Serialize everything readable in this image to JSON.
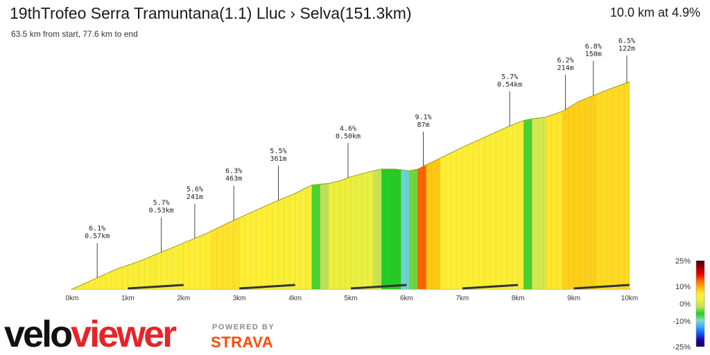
{
  "header": {
    "title": "19thTrofeo Serra Tramuntana(1.1) Lluc › Selva(151.3km)",
    "subtitle": "63.5 km from start, 77.6 km to end",
    "summary": "10.0 km at 4.9%"
  },
  "branding": {
    "logo_part1": "velo",
    "logo_part2": "viewer",
    "powered_by": "POWERED BY",
    "partner": "STRAVA",
    "logo_color_dark": "#111111",
    "logo_color_red": "#e6242a",
    "partner_color": "#fc4c02"
  },
  "chart_data": {
    "type": "area",
    "title": "",
    "xlabel": "",
    "ylabel": "",
    "xlim": [
      0,
      10
    ],
    "x_ticks": [
      "0km",
      "1km",
      "2km",
      "3km",
      "4km",
      "5km",
      "6km",
      "7km",
      "8km",
      "9km",
      "10km"
    ],
    "profile": {
      "x_km": [
        0,
        0.4,
        0.8,
        1.2,
        1.6,
        2.0,
        2.4,
        2.8,
        3.2,
        3.6,
        4.0,
        4.3,
        4.45,
        4.6,
        4.8,
        5.0,
        5.4,
        5.55,
        5.8,
        6.05,
        6.2,
        6.35,
        6.6,
        7.0,
        7.4,
        7.8,
        8.1,
        8.25,
        8.5,
        8.8,
        9.1,
        9.4,
        9.7,
        10.0
      ],
      "elevation_relative": [
        0,
        0.12,
        0.24,
        0.33,
        0.44,
        0.55,
        0.66,
        0.79,
        0.91,
        1.03,
        1.14,
        1.24,
        1.25,
        1.26,
        1.29,
        1.34,
        1.41,
        1.43,
        1.43,
        1.41,
        1.43,
        1.48,
        1.56,
        1.69,
        1.81,
        1.93,
        2.01,
        2.03,
        2.05,
        2.12,
        2.24,
        2.32,
        2.4,
        2.47
      ]
    },
    "segments": [
      {
        "from_km": 0.0,
        "to_km": 1.0,
        "gradient_pct": 5.8
      },
      {
        "from_km": 1.0,
        "to_km": 1.6,
        "gradient_pct": 5.6
      },
      {
        "from_km": 1.6,
        "to_km": 2.0,
        "gradient_pct": 5.7
      },
      {
        "from_km": 2.0,
        "to_km": 2.5,
        "gradient_pct": 6.0
      },
      {
        "from_km": 2.5,
        "to_km": 3.0,
        "gradient_pct": 6.3
      },
      {
        "from_km": 3.0,
        "to_km": 3.6,
        "gradient_pct": 6.0
      },
      {
        "from_km": 3.6,
        "to_km": 4.3,
        "gradient_pct": 5.5
      },
      {
        "from_km": 4.3,
        "to_km": 4.45,
        "gradient_pct": 0.5
      },
      {
        "from_km": 4.45,
        "to_km": 4.6,
        "gradient_pct": 2.0
      },
      {
        "from_km": 4.6,
        "to_km": 5.0,
        "gradient_pct": 4.6
      },
      {
        "from_km": 5.0,
        "to_km": 5.4,
        "gradient_pct": 4.2
      },
      {
        "from_km": 5.4,
        "to_km": 5.55,
        "gradient_pct": 2.5
      },
      {
        "from_km": 5.55,
        "to_km": 5.9,
        "gradient_pct": 0.0
      },
      {
        "from_km": 5.9,
        "to_km": 6.05,
        "gradient_pct": -1.5
      },
      {
        "from_km": 6.05,
        "to_km": 6.2,
        "gradient_pct": 1.0
      },
      {
        "from_km": 6.2,
        "to_km": 6.35,
        "gradient_pct": 9.1
      },
      {
        "from_km": 6.35,
        "to_km": 6.6,
        "gradient_pct": 7.0
      },
      {
        "from_km": 6.6,
        "to_km": 7.4,
        "gradient_pct": 5.8
      },
      {
        "from_km": 7.4,
        "to_km": 8.1,
        "gradient_pct": 5.7
      },
      {
        "from_km": 8.1,
        "to_km": 8.25,
        "gradient_pct": 0.5
      },
      {
        "from_km": 8.25,
        "to_km": 8.5,
        "gradient_pct": 3.0
      },
      {
        "from_km": 8.5,
        "to_km": 8.8,
        "gradient_pct": 6.2
      },
      {
        "from_km": 8.8,
        "to_km": 9.4,
        "gradient_pct": 6.8
      },
      {
        "from_km": 9.4,
        "to_km": 10.0,
        "gradient_pct": 6.5
      }
    ],
    "annotations": [
      {
        "x_km": 0.45,
        "grade": "6.1%",
        "length": "0.57km"
      },
      {
        "x_km": 1.6,
        "grade": "5.7%",
        "length": "0.53km"
      },
      {
        "x_km": 2.2,
        "grade": "5.6%",
        "length": "241m"
      },
      {
        "x_km": 2.9,
        "grade": "6.3%",
        "length": "463m"
      },
      {
        "x_km": 3.7,
        "grade": "5.5%",
        "length": "361m"
      },
      {
        "x_km": 4.95,
        "grade": "4.6%",
        "length": "0.50km"
      },
      {
        "x_km": 6.3,
        "grade": "9.1%",
        "length": "87m"
      },
      {
        "x_km": 7.85,
        "grade": "5.7%",
        "length": "0.54km"
      },
      {
        "x_km": 8.85,
        "grade": "6.2%",
        "length": "214m"
      },
      {
        "x_km": 9.35,
        "grade": "6.8%",
        "length": "150m"
      },
      {
        "x_km": 9.95,
        "grade": "6.5%",
        "length": "122m"
      }
    ],
    "legend": {
      "title": "",
      "placement": "right",
      "ticks": [
        "25%",
        "10%",
        "0%",
        "-10%",
        "-25%"
      ],
      "tick_values": [
        25,
        10,
        0,
        -10,
        -25
      ],
      "colors": [
        "#3a0000",
        "#a00000",
        "#e60000",
        "#ff6600",
        "#ffb300",
        "#ffee33",
        "#e8f040",
        "#bde05a",
        "#22cc22",
        "#7fe0c0",
        "#33aaff",
        "#1155ff",
        "#2200aa",
        "#0a0040"
      ]
    },
    "grid": false
  }
}
